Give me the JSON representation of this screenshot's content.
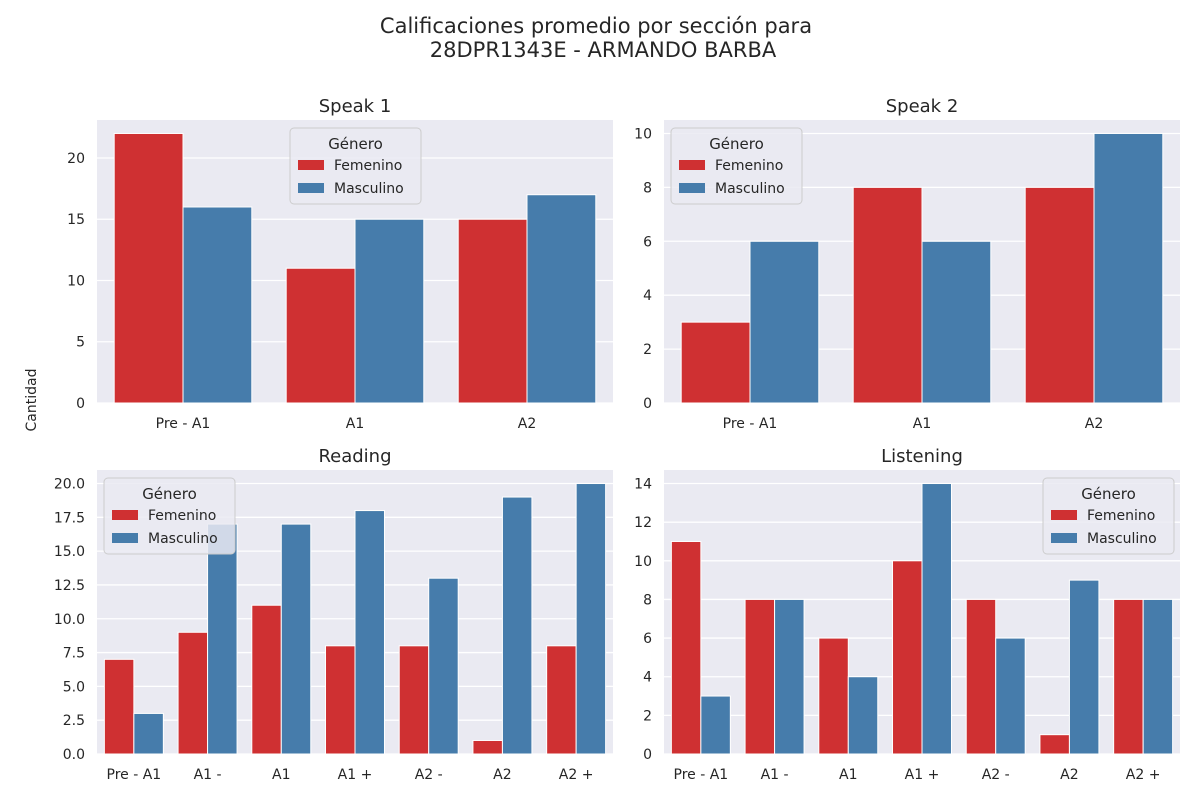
{
  "figure": {
    "suptitle_line1": "Calificaciones promedio por sección para",
    "suptitle_line2": "28DPR1343E - ARMANDO BARBA",
    "ylabel": "Cantidad"
  },
  "colors": {
    "Femenino": "#cf3032",
    "Masculino": "#467cab",
    "background": "#eaeaf2",
    "grid": "#ffffff"
  },
  "chart_data": [
    {
      "type": "bar",
      "title": "Speak 1",
      "categories": [
        "Pre - A1",
        "A1",
        "A2"
      ],
      "series": [
        {
          "name": "Femenino",
          "values": [
            22,
            11,
            15
          ]
        },
        {
          "name": "Masculino",
          "values": [
            16,
            15,
            17
          ]
        }
      ],
      "ylim": [
        0,
        23.1
      ],
      "yticks": [
        0,
        5,
        10,
        15,
        20
      ],
      "ytick_labels": [
        "0",
        "5",
        "10",
        "15",
        "20"
      ],
      "legend": {
        "title": "Género",
        "placement": "upper-center"
      },
      "grid": true
    },
    {
      "type": "bar",
      "title": "Speak 2",
      "categories": [
        "Pre - A1",
        "A1",
        "A2"
      ],
      "series": [
        {
          "name": "Femenino",
          "values": [
            3,
            8,
            8
          ]
        },
        {
          "name": "Masculino",
          "values": [
            6,
            6,
            10
          ]
        }
      ],
      "ylim": [
        0,
        10.5
      ],
      "yticks": [
        0,
        2,
        4,
        6,
        8,
        10
      ],
      "ytick_labels": [
        "0",
        "2",
        "4",
        "6",
        "8",
        "10"
      ],
      "legend": {
        "title": "Género",
        "placement": "upper-left"
      },
      "grid": true
    },
    {
      "type": "bar",
      "title": "Reading",
      "categories": [
        "Pre - A1",
        "A1 -",
        "A1",
        "A1 +",
        "A2 -",
        "A2",
        "A2 +"
      ],
      "series": [
        {
          "name": "Femenino",
          "values": [
            7,
            9,
            11,
            8,
            8,
            1,
            8
          ]
        },
        {
          "name": "Masculino",
          "values": [
            3,
            17,
            17,
            18,
            13,
            19,
            20
          ]
        }
      ],
      "ylim": [
        0,
        21
      ],
      "yticks": [
        0,
        2.5,
        5,
        7.5,
        10,
        12.5,
        15,
        17.5,
        20
      ],
      "ytick_labels": [
        "0.0",
        "2.5",
        "5.0",
        "7.5",
        "10.0",
        "12.5",
        "15.0",
        "17.5",
        "20.0"
      ],
      "legend": {
        "title": "Género",
        "placement": "upper-left"
      },
      "grid": true
    },
    {
      "type": "bar",
      "title": "Listening",
      "categories": [
        "Pre - A1",
        "A1 -",
        "A1",
        "A1 +",
        "A2 -",
        "A2",
        "A2 +"
      ],
      "series": [
        {
          "name": "Femenino",
          "values": [
            11,
            8,
            6,
            10,
            8,
            1,
            8
          ]
        },
        {
          "name": "Masculino",
          "values": [
            3,
            8,
            4,
            14,
            6,
            9,
            8
          ]
        }
      ],
      "ylim": [
        0,
        14.7
      ],
      "yticks": [
        0,
        2,
        4,
        6,
        8,
        10,
        12,
        14
      ],
      "ytick_labels": [
        "0",
        "2",
        "4",
        "6",
        "8",
        "10",
        "12",
        "14"
      ],
      "legend": {
        "title": "Género",
        "placement": "upper-right"
      },
      "grid": true
    }
  ]
}
